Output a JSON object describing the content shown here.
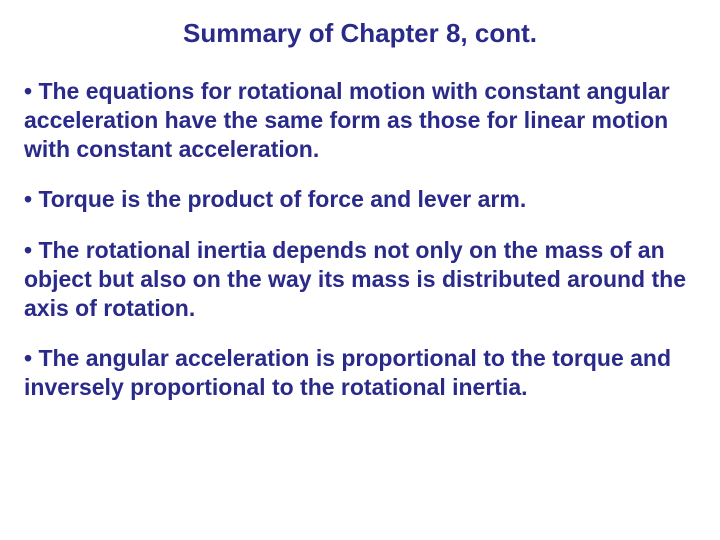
{
  "slide": {
    "title": "Summary of Chapter 8, cont.",
    "title_color": "#2a2a8a",
    "title_fontsize": 26,
    "body_color": "#2a2a8a",
    "body_fontsize": 23,
    "background_color": "#ffffff",
    "bullets": [
      "• The equations for rotational motion with constant angular acceleration have the same form as those for linear motion with constant acceleration.",
      "• Torque is the product of force and lever arm.",
      "• The rotational inertia depends not only on the mass of an object but also on the way its mass is distributed around the axis of rotation.",
      "• The angular acceleration is proportional to the torque and inversely proportional to the rotational inertia."
    ]
  }
}
